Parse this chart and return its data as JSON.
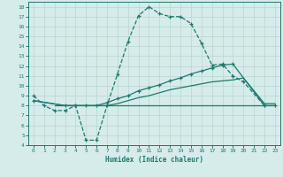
{
  "xlabel": "Humidex (Indice chaleur)",
  "bg_color": "#d6ecea",
  "grid_color": "#b8d4d0",
  "line_color": "#1a7a6e",
  "xlim": [
    -0.5,
    23.5
  ],
  "ylim": [
    4,
    18.5
  ],
  "xticks": [
    0,
    1,
    2,
    3,
    4,
    5,
    6,
    7,
    8,
    9,
    10,
    11,
    12,
    13,
    14,
    15,
    16,
    17,
    18,
    19,
    20,
    21,
    22,
    23
  ],
  "yticks": [
    4,
    5,
    6,
    7,
    8,
    9,
    10,
    11,
    12,
    13,
    14,
    15,
    16,
    17,
    18
  ],
  "line1_x": [
    0,
    1,
    2,
    3,
    4,
    5,
    6,
    7,
    8,
    9,
    10,
    11,
    12,
    13,
    14,
    15,
    16,
    17,
    18,
    19,
    20,
    22
  ],
  "line1_y": [
    9.0,
    8.0,
    7.5,
    7.5,
    8.0,
    4.5,
    4.5,
    8.0,
    11.2,
    14.5,
    17.1,
    18.0,
    17.3,
    17.0,
    17.0,
    16.3,
    14.3,
    12.1,
    12.2,
    11.0,
    10.4,
    8.0
  ],
  "line2_x": [
    0,
    3,
    4,
    5,
    6,
    7,
    8,
    9,
    10,
    11,
    12,
    13,
    14,
    15,
    16,
    17,
    18,
    19,
    22,
    23
  ],
  "line2_y": [
    8.5,
    8.0,
    8.0,
    8.0,
    8.0,
    8.3,
    8.7,
    9.0,
    9.5,
    9.8,
    10.1,
    10.5,
    10.8,
    11.2,
    11.5,
    11.8,
    12.1,
    12.2,
    8.0,
    8.0
  ],
  "line3_x": [
    0,
    3,
    4,
    5,
    6,
    7,
    8,
    9,
    10,
    11,
    12,
    13,
    14,
    15,
    16,
    17,
    18,
    19,
    20,
    22,
    23
  ],
  "line3_y": [
    8.5,
    8.0,
    8.0,
    8.0,
    8.0,
    8.0,
    8.2,
    8.5,
    8.8,
    9.0,
    9.3,
    9.6,
    9.8,
    10.0,
    10.2,
    10.4,
    10.5,
    10.6,
    10.8,
    8.2,
    8.2
  ],
  "line4_x": [
    2,
    3,
    4,
    5,
    6,
    7,
    8,
    9,
    10,
    11,
    12,
    13,
    14,
    15,
    16,
    17,
    18,
    19,
    20,
    21,
    22,
    23
  ],
  "line4_y": [
    8.0,
    8.0,
    8.0,
    8.0,
    8.0,
    8.0,
    8.0,
    8.0,
    8.0,
    8.0,
    8.0,
    8.0,
    8.0,
    8.0,
    8.0,
    8.0,
    8.0,
    8.0,
    8.0,
    8.0,
    8.0,
    8.0
  ]
}
